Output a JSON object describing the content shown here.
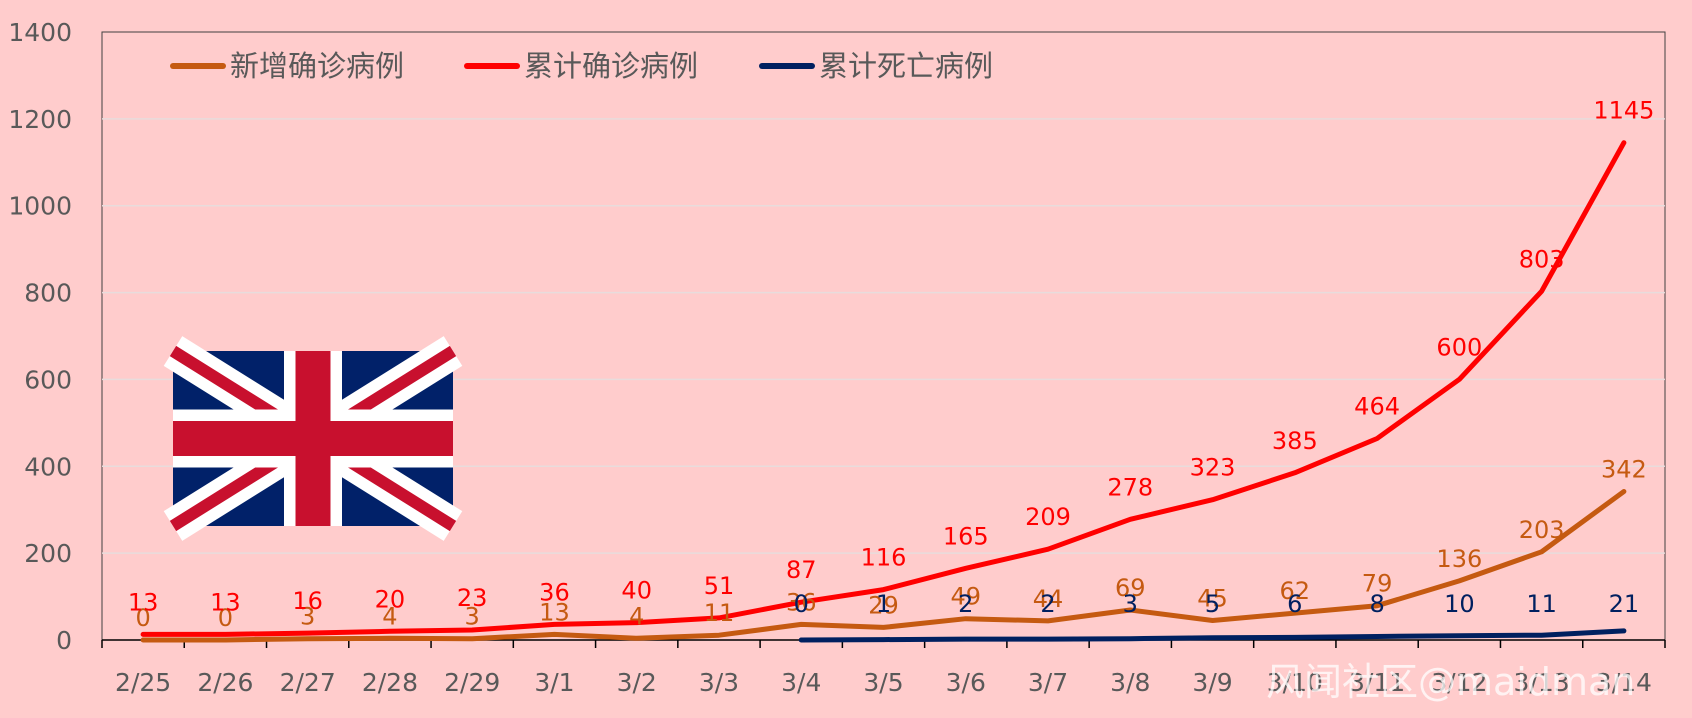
{
  "chart_data": {
    "type": "line",
    "categories": [
      "2/25",
      "2/26",
      "2/27",
      "2/28",
      "2/29",
      "3/1",
      "3/2",
      "3/3",
      "3/4",
      "3/5",
      "3/6",
      "3/7",
      "3/8",
      "3/9",
      "3/10",
      "3/11",
      "3/12",
      "3/13",
      "3/14"
    ],
    "series": [
      {
        "name": "新增确诊病例",
        "color": "#c55a11",
        "values": [
          0,
          0,
          3,
          4,
          3,
          13,
          4,
          11,
          36,
          29,
          49,
          44,
          69,
          45,
          62,
          79,
          136,
          203,
          342
        ]
      },
      {
        "name": "累计确诊病例",
        "color": "#ff0000",
        "values": [
          13,
          13,
          16,
          20,
          23,
          36,
          40,
          51,
          87,
          116,
          165,
          209,
          278,
          323,
          385,
          464,
          600,
          803,
          1145
        ]
      },
      {
        "name": "累计死亡病例",
        "color": "#002060",
        "values": [
          null,
          null,
          null,
          null,
          null,
          null,
          null,
          null,
          0,
          1,
          2,
          2,
          3,
          5,
          6,
          8,
          10,
          11,
          21
        ]
      }
    ],
    "ylim": [
      0,
      1400
    ],
    "yticks": [
      0,
      200,
      400,
      600,
      800,
      1000,
      1200,
      1400
    ],
    "grid": true,
    "legend": "top-left",
    "title": "",
    "xlabel": "",
    "ylabel": ""
  },
  "flag": {
    "icon": "union-jack-flag-icon"
  },
  "watermark": "风闻社区@maidman"
}
